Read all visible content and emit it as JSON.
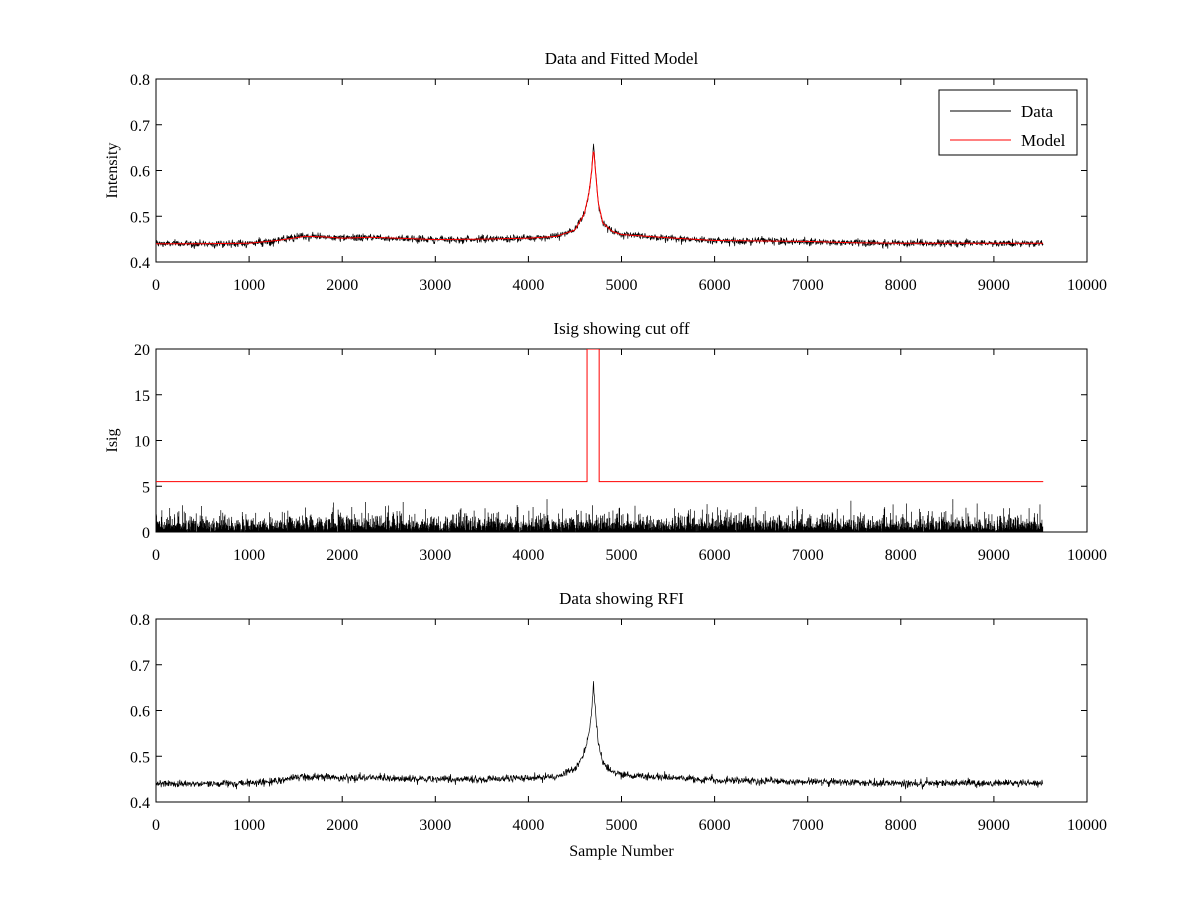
{
  "chart_data": [
    {
      "type": "line",
      "title": "Data and Fitted Model",
      "xlabel": "",
      "ylabel": "Intensity",
      "xlim": [
        0,
        10000
      ],
      "ylim": [
        0.4,
        0.8
      ],
      "xticks": [
        0,
        1000,
        2000,
        3000,
        4000,
        5000,
        6000,
        7000,
        8000,
        9000,
        10000
      ],
      "yticks": [
        0.4,
        0.5,
        0.6,
        0.7,
        0.8
      ],
      "yticklabels": [
        "0.4",
        "0.5",
        "0.6",
        "0.7",
        "0.8"
      ],
      "grid": false,
      "legend": {
        "position": "top-right",
        "entries": [
          "Data",
          "Model"
        ]
      },
      "series": [
        {
          "name": "Data",
          "color": "#000000",
          "style": "noisy",
          "noise": 0.004,
          "x": [
            0,
            500,
            1000,
            1300,
            1600,
            1800,
            2000,
            2300,
            2600,
            3000,
            3500,
            4000,
            4300,
            4500,
            4600,
            4650,
            4680,
            4700,
            4720,
            4750,
            4800,
            4900,
            5000,
            5500,
            6000,
            6500,
            7000,
            7500,
            8000,
            8500,
            9000,
            9530
          ],
          "y": [
            0.44,
            0.44,
            0.441,
            0.447,
            0.456,
            0.455,
            0.452,
            0.454,
            0.452,
            0.449,
            0.45,
            0.452,
            0.456,
            0.47,
            0.505,
            0.55,
            0.6,
            0.66,
            0.6,
            0.53,
            0.485,
            0.467,
            0.46,
            0.453,
            0.447,
            0.446,
            0.445,
            0.442,
            0.441,
            0.441,
            0.441,
            0.441
          ]
        },
        {
          "name": "Model",
          "color": "#ff0000",
          "style": "smooth",
          "x": [
            0,
            500,
            1000,
            1300,
            1600,
            1800,
            2000,
            2300,
            2600,
            3000,
            3500,
            4000,
            4300,
            4500,
            4600,
            4650,
            4680,
            4700,
            4720,
            4750,
            4800,
            4900,
            5000,
            5500,
            6000,
            6500,
            7000,
            7500,
            8000,
            8500,
            9000,
            9530
          ],
          "y": [
            0.44,
            0.44,
            0.441,
            0.447,
            0.456,
            0.455,
            0.452,
            0.454,
            0.452,
            0.449,
            0.45,
            0.452,
            0.456,
            0.47,
            0.505,
            0.55,
            0.6,
            0.65,
            0.6,
            0.53,
            0.485,
            0.467,
            0.46,
            0.453,
            0.447,
            0.446,
            0.445,
            0.442,
            0.441,
            0.441,
            0.441,
            0.441
          ]
        }
      ]
    },
    {
      "type": "line",
      "title": "Isig showing cut off",
      "xlabel": "",
      "ylabel": "Isig",
      "xlim": [
        0,
        10000
      ],
      "ylim": [
        0,
        20
      ],
      "xticks": [
        0,
        1000,
        2000,
        3000,
        4000,
        5000,
        6000,
        7000,
        8000,
        9000,
        10000
      ],
      "yticks": [
        0,
        5,
        10,
        15,
        20
      ],
      "yticklabels": [
        "0",
        "5",
        "10",
        "15",
        "20"
      ],
      "grid": false,
      "series": [
        {
          "name": "Isig",
          "color": "#000000",
          "style": "spikes",
          "x": [
            0,
            9530
          ],
          "y": [
            0,
            0
          ],
          "typical_max": 2.0,
          "peak_max": 3.6
        },
        {
          "name": "Cut off",
          "color": "#ff0000",
          "style": "step",
          "x": [
            0,
            4630,
            4630,
            4760,
            4760,
            9530
          ],
          "y": [
            5.5,
            5.5,
            20,
            20,
            5.5,
            5.5
          ]
        }
      ]
    },
    {
      "type": "line",
      "title": "Data showing RFI",
      "xlabel": "Sample Number",
      "ylabel": "",
      "xlim": [
        0,
        10000
      ],
      "ylim": [
        0.4,
        0.8
      ],
      "xticks": [
        0,
        1000,
        2000,
        3000,
        4000,
        5000,
        6000,
        7000,
        8000,
        9000,
        10000
      ],
      "yticks": [
        0.4,
        0.5,
        0.6,
        0.7,
        0.8
      ],
      "yticklabels": [
        "0.4",
        "0.5",
        "0.6",
        "0.7",
        "0.8"
      ],
      "grid": false,
      "series": [
        {
          "name": "Data",
          "color": "#000000",
          "style": "noisy",
          "noise": 0.004,
          "x": [
            0,
            500,
            1000,
            1300,
            1600,
            1800,
            2000,
            2300,
            2600,
            3000,
            3500,
            4000,
            4300,
            4500,
            4600,
            4650,
            4680,
            4700,
            4720,
            4750,
            4800,
            4900,
            5000,
            5500,
            6000,
            6500,
            7000,
            7500,
            8000,
            8500,
            9000,
            9530
          ],
          "y": [
            0.44,
            0.44,
            0.441,
            0.447,
            0.456,
            0.455,
            0.452,
            0.454,
            0.452,
            0.449,
            0.45,
            0.452,
            0.456,
            0.47,
            0.505,
            0.55,
            0.6,
            0.66,
            0.6,
            0.53,
            0.485,
            0.467,
            0.46,
            0.453,
            0.447,
            0.446,
            0.445,
            0.442,
            0.441,
            0.441,
            0.441,
            0.441
          ]
        }
      ]
    }
  ]
}
